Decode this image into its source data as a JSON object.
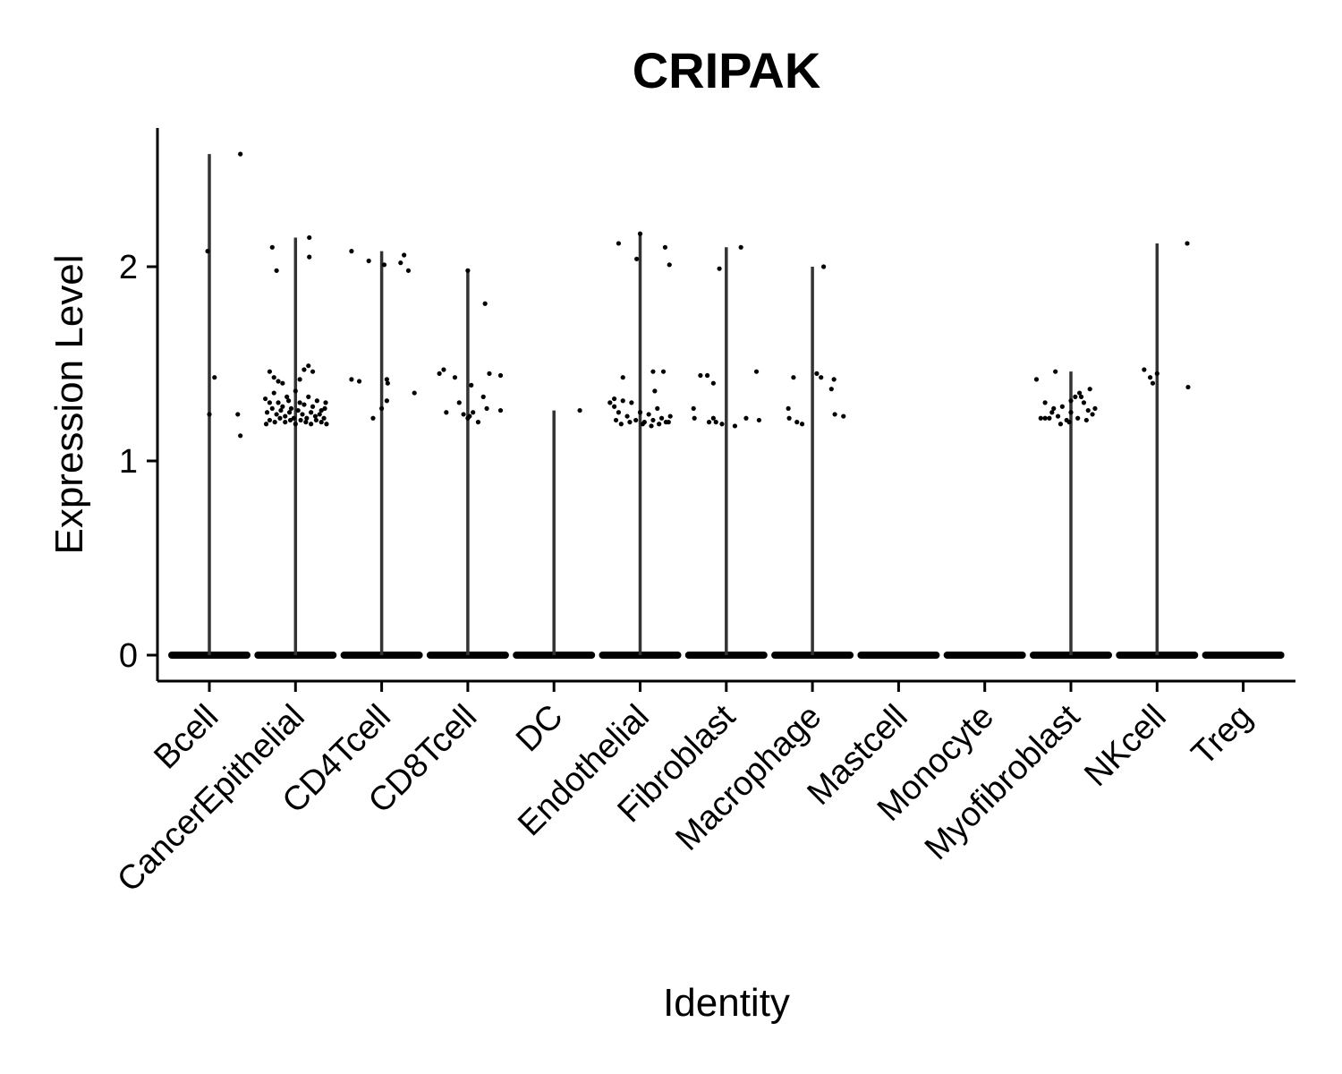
{
  "chart_data": {
    "type": "scatter",
    "title": "CRIPAK",
    "xlabel": "Identity",
    "ylabel": "Expression Level",
    "ylim": [
      -0.13,
      2.72
    ],
    "yticks": [
      0,
      1,
      2
    ],
    "grid": false,
    "legend": "none",
    "categories": [
      "Bcell",
      "CancerEpithelial",
      "CD4Tcell",
      "CD8Tcell",
      "DC",
      "Endothelial",
      "Fibroblast",
      "Macrophage",
      "Mastcell",
      "Monocyte",
      "Myofibroblast",
      "NKcell",
      "Treg"
    ],
    "violin_max": [
      2.58,
      2.15,
      2.08,
      1.99,
      1.26,
      2.17,
      2.1,
      2.0,
      0,
      0,
      1.46,
      2.12,
      0
    ],
    "points": [
      [
        [
          -0.02,
          2.08
        ],
        [
          0.36,
          2.58
        ],
        [
          0.06,
          1.43
        ],
        [
          0.0,
          1.24
        ],
        [
          0.33,
          1.24
        ],
        [
          0.36,
          1.13
        ]
      ],
      [
        [
          -0.27,
          2.1
        ],
        [
          -0.22,
          1.98
        ],
        [
          0.16,
          2.15
        ],
        [
          0.16,
          2.05
        ],
        [
          -0.3,
          1.46
        ],
        [
          -0.25,
          1.43
        ],
        [
          -0.2,
          1.41
        ],
        [
          -0.15,
          1.4
        ],
        [
          0.1,
          1.47
        ],
        [
          0.15,
          1.49
        ],
        [
          0.2,
          1.46
        ],
        [
          0.05,
          1.42
        ],
        [
          -0.35,
          1.32
        ],
        [
          -0.3,
          1.3
        ],
        [
          -0.25,
          1.35
        ],
        [
          -0.2,
          1.3
        ],
        [
          -0.15,
          1.28
        ],
        [
          -0.1,
          1.33
        ],
        [
          -0.05,
          1.27
        ],
        [
          0.0,
          1.36
        ],
        [
          0.05,
          1.3
        ],
        [
          0.1,
          1.29
        ],
        [
          0.15,
          1.33
        ],
        [
          0.2,
          1.28
        ],
        [
          0.25,
          1.31
        ],
        [
          0.3,
          1.26
        ],
        [
          0.35,
          1.3
        ],
        [
          -0.33,
          1.25
        ],
        [
          -0.27,
          1.27
        ],
        [
          -0.22,
          1.24
        ],
        [
          -0.17,
          1.26
        ],
        [
          -0.12,
          1.23
        ],
        [
          -0.07,
          1.25
        ],
        [
          -0.02,
          1.22
        ],
        [
          0.03,
          1.26
        ],
        [
          0.08,
          1.24
        ],
        [
          0.13,
          1.22
        ],
        [
          0.18,
          1.25
        ],
        [
          0.23,
          1.23
        ],
        [
          0.28,
          1.24
        ],
        [
          0.33,
          1.22
        ],
        [
          -0.3,
          1.21
        ],
        [
          -0.24,
          1.2
        ],
        [
          -0.18,
          1.22
        ],
        [
          -0.12,
          1.2
        ],
        [
          -0.06,
          1.21
        ],
        [
          0.0,
          1.19
        ],
        [
          0.06,
          1.21
        ],
        [
          0.12,
          1.2
        ],
        [
          0.18,
          1.19
        ],
        [
          0.24,
          1.21
        ],
        [
          0.3,
          1.2
        ],
        [
          0.36,
          1.19
        ],
        [
          -0.34,
          1.19
        ],
        [
          0.34,
          1.27
        ],
        [
          -0.08,
          1.31
        ]
      ],
      [
        [
          -0.35,
          2.08
        ],
        [
          -0.15,
          2.03
        ],
        [
          0.03,
          2.01
        ],
        [
          0.22,
          2.02
        ],
        [
          0.26,
          2.06
        ],
        [
          0.31,
          1.98
        ],
        [
          -0.35,
          1.42
        ],
        [
          -0.26,
          1.41
        ],
        [
          0.06,
          1.42
        ],
        [
          0.07,
          1.4
        ],
        [
          0.38,
          1.35
        ],
        [
          -0.1,
          1.22
        ],
        [
          0.0,
          1.27
        ],
        [
          0.06,
          1.31
        ]
      ],
      [
        [
          -0.33,
          1.45
        ],
        [
          -0.28,
          1.47
        ],
        [
          -0.15,
          1.43
        ],
        [
          0.25,
          1.45
        ],
        [
          0.38,
          1.44
        ],
        [
          0.2,
          1.81
        ],
        [
          0.0,
          1.98
        ],
        [
          -0.25,
          1.25
        ],
        [
          -0.1,
          1.3
        ],
        [
          -0.05,
          1.24
        ],
        [
          0.0,
          1.22
        ],
        [
          0.04,
          1.39
        ],
        [
          0.06,
          1.25
        ],
        [
          0.12,
          1.2
        ],
        [
          0.18,
          1.33
        ],
        [
          0.22,
          1.27
        ],
        [
          0.38,
          1.26
        ],
        [
          0.02,
          1.23
        ]
      ],
      [
        [
          0.3,
          1.26
        ]
      ],
      [
        [
          -0.25,
          2.12
        ],
        [
          -0.04,
          2.04
        ],
        [
          0.29,
          2.1
        ],
        [
          0.34,
          2.01
        ],
        [
          0.0,
          2.17
        ],
        [
          -0.2,
          1.43
        ],
        [
          0.15,
          1.46
        ],
        [
          0.27,
          1.46
        ],
        [
          -0.35,
          1.3
        ],
        [
          -0.3,
          1.28
        ],
        [
          -0.25,
          1.25
        ],
        [
          -0.2,
          1.31
        ],
        [
          -0.15,
          1.23
        ],
        [
          -0.1,
          1.3
        ],
        [
          -0.05,
          1.21
        ],
        [
          0.0,
          1.25
        ],
        [
          0.05,
          1.2
        ],
        [
          0.1,
          1.24
        ],
        [
          0.15,
          1.21
        ],
        [
          0.2,
          1.27
        ],
        [
          0.25,
          1.22
        ],
        [
          0.3,
          1.2
        ],
        [
          0.35,
          1.23
        ],
        [
          -0.28,
          1.21
        ],
        [
          -0.22,
          1.19
        ],
        [
          -0.12,
          1.2
        ],
        [
          0.03,
          1.19
        ],
        [
          0.13,
          1.18
        ],
        [
          0.22,
          1.19
        ],
        [
          0.33,
          1.2
        ],
        [
          0.17,
          1.36
        ],
        [
          -0.3,
          1.32
        ]
      ],
      [
        [
          -0.08,
          1.99
        ],
        [
          0.17,
          2.1
        ],
        [
          -0.3,
          1.44
        ],
        [
          -0.22,
          1.44
        ],
        [
          -0.15,
          1.4
        ],
        [
          0.35,
          1.46
        ],
        [
          -0.38,
          1.27
        ],
        [
          -0.37,
          1.22
        ],
        [
          -0.2,
          1.2
        ],
        [
          -0.15,
          1.22
        ],
        [
          -0.12,
          1.2
        ],
        [
          -0.05,
          1.19
        ],
        [
          0.1,
          1.18
        ],
        [
          0.23,
          1.22
        ],
        [
          0.38,
          1.21
        ]
      ],
      [
        [
          0.13,
          2.0
        ],
        [
          -0.22,
          1.43
        ],
        [
          0.05,
          1.45
        ],
        [
          0.1,
          1.43
        ],
        [
          0.25,
          1.42
        ],
        [
          0.22,
          1.37
        ],
        [
          -0.28,
          1.27
        ],
        [
          -0.27,
          1.22
        ],
        [
          -0.18,
          1.2
        ],
        [
          -0.12,
          1.19
        ],
        [
          0.26,
          1.24
        ],
        [
          0.36,
          1.23
        ]
      ],
      [],
      [],
      [
        [
          -0.4,
          1.42
        ],
        [
          -0.18,
          1.46
        ],
        [
          -0.3,
          1.3
        ],
        [
          -0.35,
          1.22
        ],
        [
          -0.3,
          1.22
        ],
        [
          -0.25,
          1.22
        ],
        [
          -0.2,
          1.27
        ],
        [
          -0.15,
          1.23
        ],
        [
          -0.1,
          1.28
        ],
        [
          -0.05,
          1.21
        ],
        [
          0.0,
          1.25
        ],
        [
          0.05,
          1.33
        ],
        [
          0.1,
          1.35
        ],
        [
          0.15,
          1.3
        ],
        [
          0.2,
          1.26
        ],
        [
          0.25,
          1.24
        ],
        [
          0.28,
          1.27
        ],
        [
          0.22,
          1.37
        ],
        [
          0.12,
          1.33
        ],
        [
          -0.12,
          1.19
        ],
        [
          -0.02,
          1.2
        ],
        [
          0.08,
          1.22
        ],
        [
          0.18,
          1.21
        ],
        [
          -0.22,
          1.25
        ],
        [
          0.0,
          1.31
        ]
      ],
      [
        [
          -0.15,
          1.47
        ],
        [
          -0.08,
          1.43
        ],
        [
          -0.05,
          1.4
        ],
        [
          0.35,
          2.12
        ],
        [
          0.36,
          1.38
        ],
        [
          0.0,
          1.45
        ]
      ],
      []
    ]
  }
}
